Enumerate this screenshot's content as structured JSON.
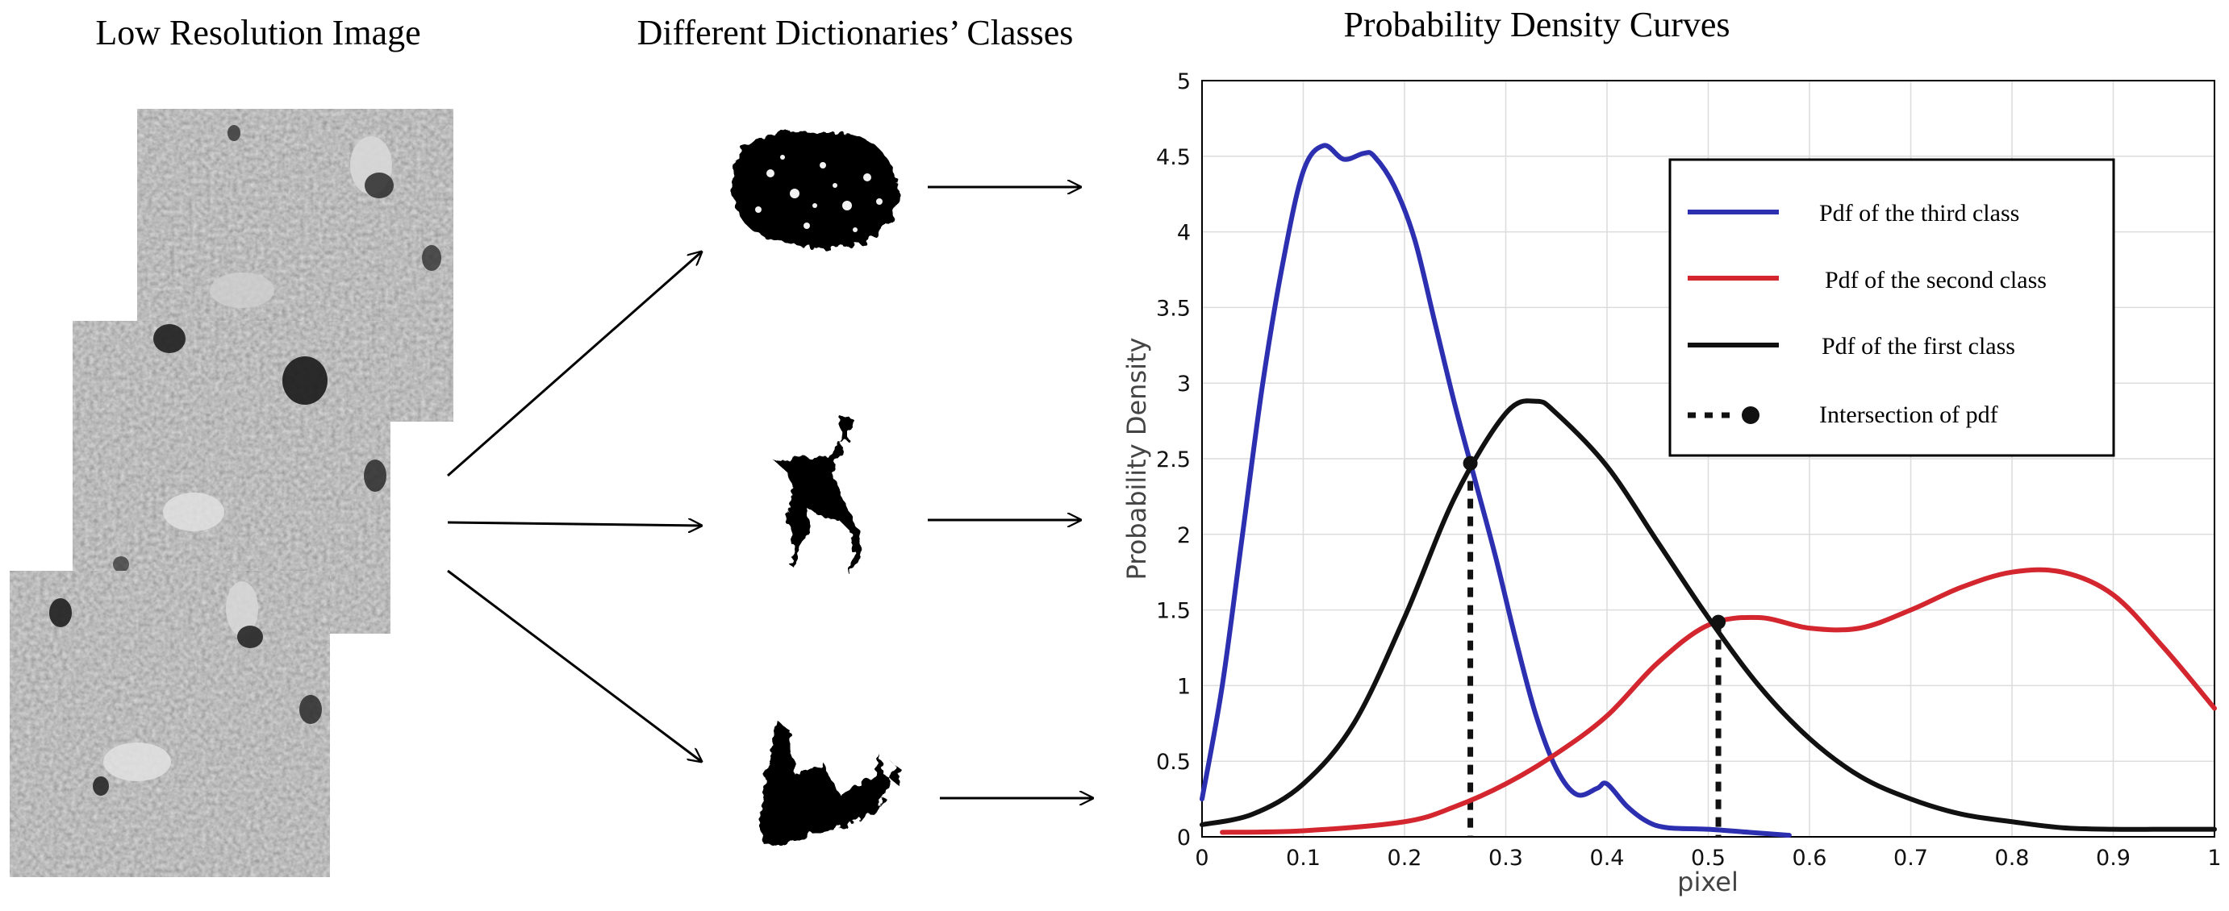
{
  "panels": {
    "left_title": "Low Resolution Image",
    "middle_title": "Different Dictionaries’ Classes",
    "right_title": "Probability  Density Curves"
  },
  "chart_data": {
    "type": "line",
    "xlabel": "pixel",
    "ylabel": "Probability Density",
    "xlim": [
      0,
      1
    ],
    "ylim": [
      0,
      5
    ],
    "x_ticks": [
      "0",
      "0.1",
      "0.2",
      "0.3",
      "0.4",
      "0.5",
      "0.6",
      "0.7",
      "0.8",
      "0.9",
      "1"
    ],
    "y_ticks": [
      "0",
      "0.5",
      "1",
      "1.5",
      "2",
      "2.5",
      "3",
      "3.5",
      "4",
      "4.5",
      "5"
    ],
    "grid": true,
    "legend_position": "top-right",
    "series": [
      {
        "name": "Pdf of the third class",
        "color": "#2b2fb0",
        "style": "solid",
        "x": [
          0,
          0.02,
          0.04,
          0.06,
          0.08,
          0.1,
          0.12,
          0.14,
          0.16,
          0.17,
          0.19,
          0.21,
          0.23,
          0.25,
          0.27,
          0.29,
          0.31,
          0.33,
          0.35,
          0.37,
          0.39,
          0.4,
          0.42,
          0.44,
          0.46,
          0.5,
          0.54,
          0.58
        ],
        "y": [
          0.25,
          1.0,
          2.0,
          3.0,
          3.8,
          4.4,
          4.57,
          4.48,
          4.52,
          4.5,
          4.3,
          3.95,
          3.4,
          2.85,
          2.35,
          1.85,
          1.3,
          0.8,
          0.45,
          0.28,
          0.32,
          0.35,
          0.2,
          0.1,
          0.06,
          0.05,
          0.03,
          0.01
        ]
      },
      {
        "name": "Pdf of the second class",
        "color": "#d3262e",
        "style": "solid",
        "x": [
          0.02,
          0.1,
          0.2,
          0.25,
          0.3,
          0.35,
          0.4,
          0.45,
          0.5,
          0.55,
          0.6,
          0.65,
          0.7,
          0.75,
          0.8,
          0.85,
          0.9,
          0.95,
          1.0
        ],
        "y": [
          0.03,
          0.04,
          0.1,
          0.2,
          0.35,
          0.55,
          0.8,
          1.15,
          1.4,
          1.45,
          1.38,
          1.38,
          1.5,
          1.65,
          1.75,
          1.75,
          1.6,
          1.25,
          0.85
        ]
      },
      {
        "name": "Pdf of the first class",
        "color": "#111111",
        "style": "solid",
        "x": [
          0,
          0.05,
          0.1,
          0.15,
          0.2,
          0.25,
          0.3,
          0.33,
          0.35,
          0.4,
          0.45,
          0.5,
          0.55,
          0.6,
          0.65,
          0.7,
          0.75,
          0.8,
          0.85,
          0.9,
          0.95,
          1.0
        ],
        "y": [
          0.08,
          0.15,
          0.35,
          0.75,
          1.45,
          2.25,
          2.8,
          2.88,
          2.8,
          2.45,
          1.95,
          1.45,
          1.0,
          0.65,
          0.4,
          0.25,
          0.15,
          0.1,
          0.06,
          0.05,
          0.05,
          0.05
        ]
      }
    ],
    "intersections": {
      "name": "Intersection of pdf",
      "points": [
        {
          "x": 0.265,
          "y": 2.47
        },
        {
          "x": 0.51,
          "y": 1.42
        }
      ]
    }
  },
  "colors": {
    "blue": "#2b2fb0",
    "red": "#d3262e",
    "black": "#111111",
    "grid": "#dcdcdc"
  }
}
